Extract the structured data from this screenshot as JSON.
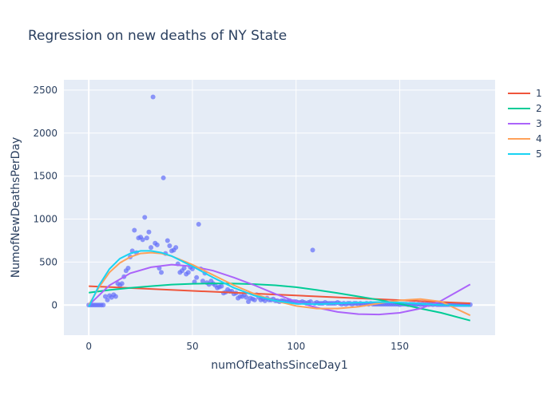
{
  "chart_data": {
    "type": "scatter",
    "title": "Regression on new deaths of NY State",
    "xlabel": "numOfDeathsSinceDay1",
    "ylabel": "NumofNewDeathsPerDay",
    "xlim": [
      -12,
      196
    ],
    "ylim": [
      -350,
      2620
    ],
    "x_ticks": [
      0,
      50,
      100,
      150
    ],
    "y_ticks": [
      0,
      500,
      1000,
      1500,
      2000,
      2500
    ],
    "legend": "top-right",
    "grid": true,
    "colors": {
      "plot_bg": "#e5ecf6",
      "grid": "#ffffff",
      "scatter": "#636efa"
    },
    "scatter_points": [
      [
        0,
        0
      ],
      [
        1,
        0
      ],
      [
        2,
        0
      ],
      [
        3,
        0
      ],
      [
        4,
        0
      ],
      [
        5,
        0
      ],
      [
        6,
        0
      ],
      [
        7,
        0
      ],
      [
        8,
        100
      ],
      [
        9,
        60
      ],
      [
        10,
        110
      ],
      [
        11,
        90
      ],
      [
        12,
        120
      ],
      [
        13,
        100
      ],
      [
        14,
        250
      ],
      [
        15,
        230
      ],
      [
        16,
        250
      ],
      [
        17,
        330
      ],
      [
        18,
        400
      ],
      [
        19,
        430
      ],
      [
        20,
        560
      ],
      [
        21,
        630
      ],
      [
        22,
        870
      ],
      [
        23,
        610
      ],
      [
        24,
        780
      ],
      [
        25,
        790
      ],
      [
        26,
        760
      ],
      [
        27,
        1020
      ],
      [
        28,
        780
      ],
      [
        29,
        850
      ],
      [
        30,
        670
      ],
      [
        31,
        2420
      ],
      [
        32,
        720
      ],
      [
        33,
        700
      ],
      [
        34,
        430
      ],
      [
        35,
        380
      ],
      [
        36,
        1480
      ],
      [
        37,
        600
      ],
      [
        38,
        750
      ],
      [
        39,
        690
      ],
      [
        40,
        630
      ],
      [
        41,
        640
      ],
      [
        42,
        670
      ],
      [
        43,
        480
      ],
      [
        44,
        380
      ],
      [
        45,
        400
      ],
      [
        46,
        430
      ],
      [
        47,
        360
      ],
      [
        48,
        380
      ],
      [
        49,
        440
      ],
      [
        50,
        420
      ],
      [
        51,
        270
      ],
      [
        52,
        320
      ],
      [
        53,
        940
      ],
      [
        54,
        420
      ],
      [
        55,
        280
      ],
      [
        56,
        370
      ],
      [
        57,
        260
      ],
      [
        58,
        240
      ],
      [
        59,
        280
      ],
      [
        60,
        250
      ],
      [
        61,
        230
      ],
      [
        62,
        200
      ],
      [
        63,
        210
      ],
      [
        64,
        220
      ],
      [
        65,
        140
      ],
      [
        66,
        150
      ],
      [
        67,
        180
      ],
      [
        68,
        160
      ],
      [
        69,
        160
      ],
      [
        70,
        130
      ],
      [
        71,
        140
      ],
      [
        72,
        80
      ],
      [
        73,
        100
      ],
      [
        74,
        100
      ],
      [
        75,
        120
      ],
      [
        76,
        90
      ],
      [
        77,
        40
      ],
      [
        78,
        80
      ],
      [
        79,
        70
      ],
      [
        80,
        60
      ],
      [
        81,
        120
      ],
      [
        82,
        90
      ],
      [
        83,
        60
      ],
      [
        84,
        70
      ],
      [
        85,
        50
      ],
      [
        86,
        80
      ],
      [
        87,
        60
      ],
      [
        88,
        60
      ],
      [
        89,
        70
      ],
      [
        90,
        50
      ],
      [
        91,
        50
      ],
      [
        92,
        40
      ],
      [
        93,
        50
      ],
      [
        94,
        50
      ],
      [
        95,
        40
      ],
      [
        96,
        40
      ],
      [
        97,
        50
      ],
      [
        98,
        40
      ],
      [
        99,
        40
      ],
      [
        100,
        40
      ],
      [
        101,
        30
      ],
      [
        102,
        30
      ],
      [
        103,
        40
      ],
      [
        104,
        30
      ],
      [
        105,
        20
      ],
      [
        106,
        30
      ],
      [
        107,
        40
      ],
      [
        108,
        640
      ],
      [
        109,
        20
      ],
      [
        110,
        30
      ],
      [
        111,
        20
      ],
      [
        112,
        20
      ],
      [
        113,
        20
      ],
      [
        114,
        30
      ],
      [
        115,
        20
      ],
      [
        116,
        20
      ],
      [
        117,
        20
      ],
      [
        118,
        20
      ],
      [
        119,
        20
      ],
      [
        120,
        30
      ],
      [
        121,
        20
      ],
      [
        122,
        10
      ],
      [
        123,
        20
      ],
      [
        124,
        10
      ],
      [
        125,
        20
      ],
      [
        126,
        20
      ],
      [
        127,
        10
      ],
      [
        128,
        20
      ],
      [
        129,
        20
      ],
      [
        130,
        10
      ],
      [
        131,
        20
      ],
      [
        132,
        10
      ],
      [
        133,
        10
      ],
      [
        134,
        20
      ],
      [
        135,
        10
      ],
      [
        136,
        20
      ],
      [
        137,
        10
      ],
      [
        138,
        10
      ],
      [
        139,
        10
      ],
      [
        140,
        10
      ],
      [
        141,
        10
      ],
      [
        142,
        10
      ],
      [
        143,
        10
      ],
      [
        144,
        10
      ],
      [
        145,
        10
      ],
      [
        146,
        10
      ],
      [
        147,
        10
      ],
      [
        148,
        10
      ],
      [
        149,
        10
      ],
      [
        150,
        5
      ],
      [
        151,
        10
      ],
      [
        152,
        10
      ],
      [
        153,
        10
      ],
      [
        154,
        5
      ],
      [
        155,
        10
      ],
      [
        156,
        10
      ],
      [
        157,
        10
      ],
      [
        158,
        5
      ],
      [
        159,
        10
      ],
      [
        160,
        5
      ],
      [
        161,
        10
      ],
      [
        162,
        5
      ],
      [
        163,
        10
      ],
      [
        164,
        5
      ],
      [
        165,
        10
      ],
      [
        166,
        5
      ],
      [
        167,
        10
      ],
      [
        168,
        5
      ],
      [
        169,
        5
      ],
      [
        170,
        5
      ],
      [
        171,
        5
      ],
      [
        172,
        5
      ],
      [
        173,
        5
      ],
      [
        174,
        5
      ],
      [
        175,
        10
      ],
      [
        176,
        5
      ],
      [
        177,
        5
      ],
      [
        178,
        5
      ],
      [
        179,
        5
      ],
      [
        180,
        5
      ],
      [
        181,
        5
      ],
      [
        182,
        5
      ],
      [
        183,
        5
      ],
      [
        184,
        5
      ]
    ],
    "series": [
      {
        "name": "1",
        "color": "#ef553b",
        "x": [
          0,
          184
        ],
        "y": [
          220,
          20
        ]
      },
      {
        "name": "2",
        "color": "#00cc96",
        "x": [
          0,
          10,
          20,
          30,
          40,
          50,
          60,
          70,
          80,
          90,
          100,
          110,
          120,
          130,
          140,
          150,
          160,
          170,
          184
        ],
        "y": [
          145,
          175,
          200,
          220,
          238,
          248,
          252,
          250,
          243,
          230,
          208,
          175,
          140,
          100,
          60,
          15,
          -40,
          -90,
          -180
        ]
      },
      {
        "name": "3",
        "color": "#ab63fa",
        "x": [
          0,
          10,
          20,
          30,
          40,
          50,
          60,
          70,
          80,
          90,
          100,
          110,
          120,
          130,
          140,
          150,
          160,
          170,
          184
        ],
        "y": [
          0,
          230,
          370,
          440,
          470,
          450,
          400,
          320,
          230,
          130,
          40,
          -30,
          -80,
          -105,
          -110,
          -90,
          -40,
          50,
          240
        ]
      },
      {
        "name": "4",
        "color": "#ffa15a",
        "x": [
          0,
          5,
          10,
          15,
          20,
          25,
          30,
          35,
          40,
          50,
          60,
          70,
          80,
          90,
          100,
          110,
          120,
          130,
          140,
          150,
          160,
          170,
          184
        ],
        "y": [
          0,
          210,
          380,
          490,
          560,
          600,
          610,
          600,
          570,
          470,
          350,
          230,
          130,
          50,
          -10,
          -40,
          -40,
          -20,
          20,
          55,
          70,
          40,
          -120
        ]
      },
      {
        "name": "5",
        "color": "#19d3f3",
        "x": [
          0,
          5,
          10,
          15,
          20,
          25,
          30,
          35,
          40,
          50,
          60,
          70,
          80,
          90,
          100,
          110,
          120,
          130,
          140,
          150,
          160,
          170,
          184
        ],
        "y": [
          -20,
          230,
          420,
          540,
          600,
          630,
          630,
          610,
          570,
          450,
          320,
          200,
          110,
          50,
          15,
          10,
          20,
          30,
          35,
          30,
          15,
          0,
          -10
        ]
      }
    ]
  }
}
